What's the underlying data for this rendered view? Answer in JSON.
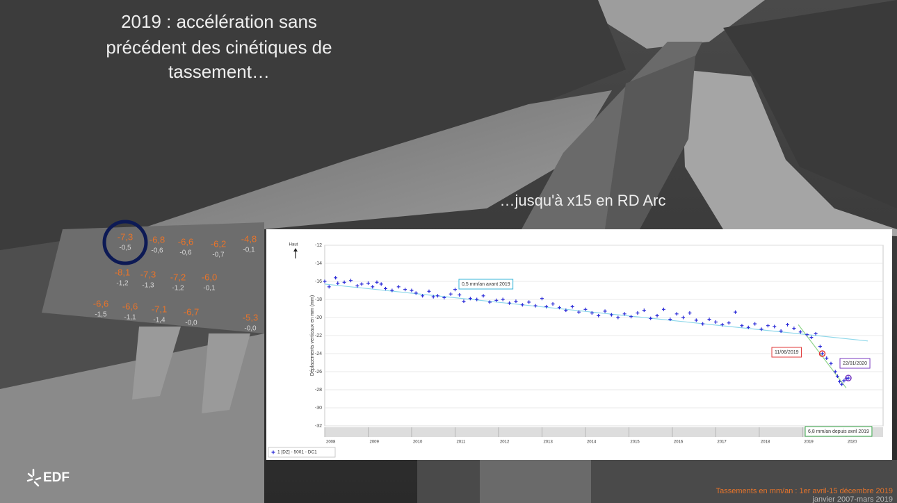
{
  "slide": {
    "title_lines": [
      "2019 : accélération sans",
      "précédent des cinétiques de",
      "tassement…"
    ],
    "subtitle": "…jusqu'à x15 en RD Arc",
    "dam_labels": [
      {
        "top": "-7,3",
        "bottom": "-0,5"
      },
      {
        "top": "-6,8",
        "bottom": "-0,6"
      },
      {
        "top": "-6,6",
        "bottom": "-0,6"
      },
      {
        "top": "-6,2",
        "bottom": "-0,7"
      },
      {
        "top": "-4,8",
        "bottom": "-0,1"
      },
      {
        "top": "-8,1",
        "bottom": "-1,2"
      },
      {
        "top": "-7,3",
        "bottom": "-1,3"
      },
      {
        "top": "-7,2",
        "bottom": "-1,2"
      },
      {
        "top": "-6,0",
        "bottom": "-0,1"
      },
      {
        "top": "-6,6",
        "bottom": "-1,5"
      },
      {
        "top": "-6,6",
        "bottom": "-1,1"
      },
      {
        "top": "-7,1",
        "bottom": "-1,4"
      },
      {
        "top": "-6,7",
        "bottom": "-0,0"
      },
      {
        "top": "-5,3",
        "bottom": "-0,0"
      }
    ],
    "logo": "EDF",
    "footer_lines": [
      "Tassements en mm/an : 1er avril-15 décembre 2019",
      "janvier 2007-mars 2019"
    ]
  },
  "chart_data": {
    "type": "scatter",
    "y_label": "Déplacements verticaux en mm (mm)",
    "direction_label": "Haut",
    "xlim": [
      2008,
      2020.85
    ],
    "xticks": [
      2008,
      2009,
      2010,
      2011,
      2012,
      2013,
      2014,
      2015,
      2016,
      2017,
      2018,
      2019,
      2020
    ],
    "ylim": [
      -32,
      -12
    ],
    "yticks": [
      -12,
      -14,
      -16,
      -18,
      -20,
      -22,
      -24,
      -26,
      -28,
      -30,
      -32
    ],
    "grid": true,
    "series": [
      {
        "name": "1 [DZ] - 5001 - DC1",
        "color": "#2a2ad8",
        "x": [
          2008.0,
          2008.1,
          2008.25,
          2008.3,
          2008.45,
          2008.6,
          2008.75,
          2008.85,
          2009.0,
          2009.1,
          2009.2,
          2009.3,
          2009.4,
          2009.55,
          2009.7,
          2009.85,
          2010.0,
          2010.1,
          2010.25,
          2010.4,
          2010.5,
          2010.6,
          2010.75,
          2010.9,
          2011.0,
          2011.1,
          2011.2,
          2011.35,
          2011.5,
          2011.65,
          2011.8,
          2011.95,
          2012.1,
          2012.25,
          2012.4,
          2012.55,
          2012.7,
          2012.85,
          2013.0,
          2013.1,
          2013.25,
          2013.4,
          2013.55,
          2013.7,
          2013.85,
          2014.0,
          2014.15,
          2014.3,
          2014.45,
          2014.6,
          2014.75,
          2014.9,
          2015.05,
          2015.2,
          2015.35,
          2015.5,
          2015.65,
          2015.8,
          2015.95,
          2016.1,
          2016.25,
          2016.4,
          2016.55,
          2016.7,
          2016.85,
          2017.0,
          2017.15,
          2017.3,
          2017.45,
          2017.6,
          2017.75,
          2017.9,
          2018.05,
          2018.2,
          2018.35,
          2018.5,
          2018.65,
          2018.8,
          2018.95,
          2019.1,
          2019.2,
          2019.3,
          2019.4,
          2019.45,
          2019.55,
          2019.65,
          2019.75,
          2019.8,
          2019.85,
          2019.9,
          2019.95,
          2020.0,
          2020.05
        ],
        "values": [
          -16.0,
          -16.6,
          -15.6,
          -16.2,
          -16.1,
          -15.9,
          -16.5,
          -16.3,
          -16.2,
          -16.6,
          -16.1,
          -16.3,
          -16.8,
          -17.0,
          -16.6,
          -16.9,
          -17.0,
          -17.3,
          -17.6,
          -17.1,
          -17.7,
          -17.6,
          -17.8,
          -17.4,
          -16.9,
          -17.5,
          -18.2,
          -17.9,
          -18.0,
          -17.6,
          -18.3,
          -18.1,
          -18.0,
          -18.4,
          -18.2,
          -18.6,
          -18.3,
          -18.7,
          -17.9,
          -18.8,
          -18.5,
          -18.9,
          -19.2,
          -18.8,
          -19.4,
          -19.1,
          -19.5,
          -19.8,
          -19.3,
          -19.7,
          -20.0,
          -19.6,
          -19.9,
          -19.5,
          -19.2,
          -20.1,
          -19.8,
          -19.1,
          -20.2,
          -19.6,
          -20.0,
          -19.5,
          -20.3,
          -20.7,
          -20.2,
          -20.5,
          -20.8,
          -20.6,
          -19.4,
          -20.9,
          -21.1,
          -20.7,
          -21.3,
          -20.9,
          -21.0,
          -21.5,
          -20.8,
          -21.2,
          -21.6,
          -21.9,
          -22.2,
          -21.8,
          -23.2,
          -24.0,
          -24.5,
          -25.1,
          -26.0,
          -26.5,
          -27.1,
          -27.4,
          -27.0,
          -26.8,
          -26.7
        ]
      }
    ],
    "trends": [
      {
        "color": "#8fd8ea",
        "x": [
          2008.0,
          2020.5
        ],
        "y": [
          -16.3,
          -22.6
        ]
      },
      {
        "color": "#8fd48a",
        "x": [
          2018.9,
          2020.0
        ],
        "y": [
          -20.8,
          -27.8
        ]
      }
    ],
    "annotations": [
      {
        "text": "0,5 mm/an avant 2019",
        "color": "#37b5d8"
      },
      {
        "text": "11/06/2019",
        "color": "#e03a3a",
        "x": 2019.45,
        "y": -24.0
      },
      {
        "text": "22/01/2020",
        "color": "#7a3ac0",
        "x": 2020.05,
        "y": -26.7
      },
      {
        "text": "6,8 mm/an depuis avril 2019",
        "color": "#3aa84a"
      }
    ]
  }
}
